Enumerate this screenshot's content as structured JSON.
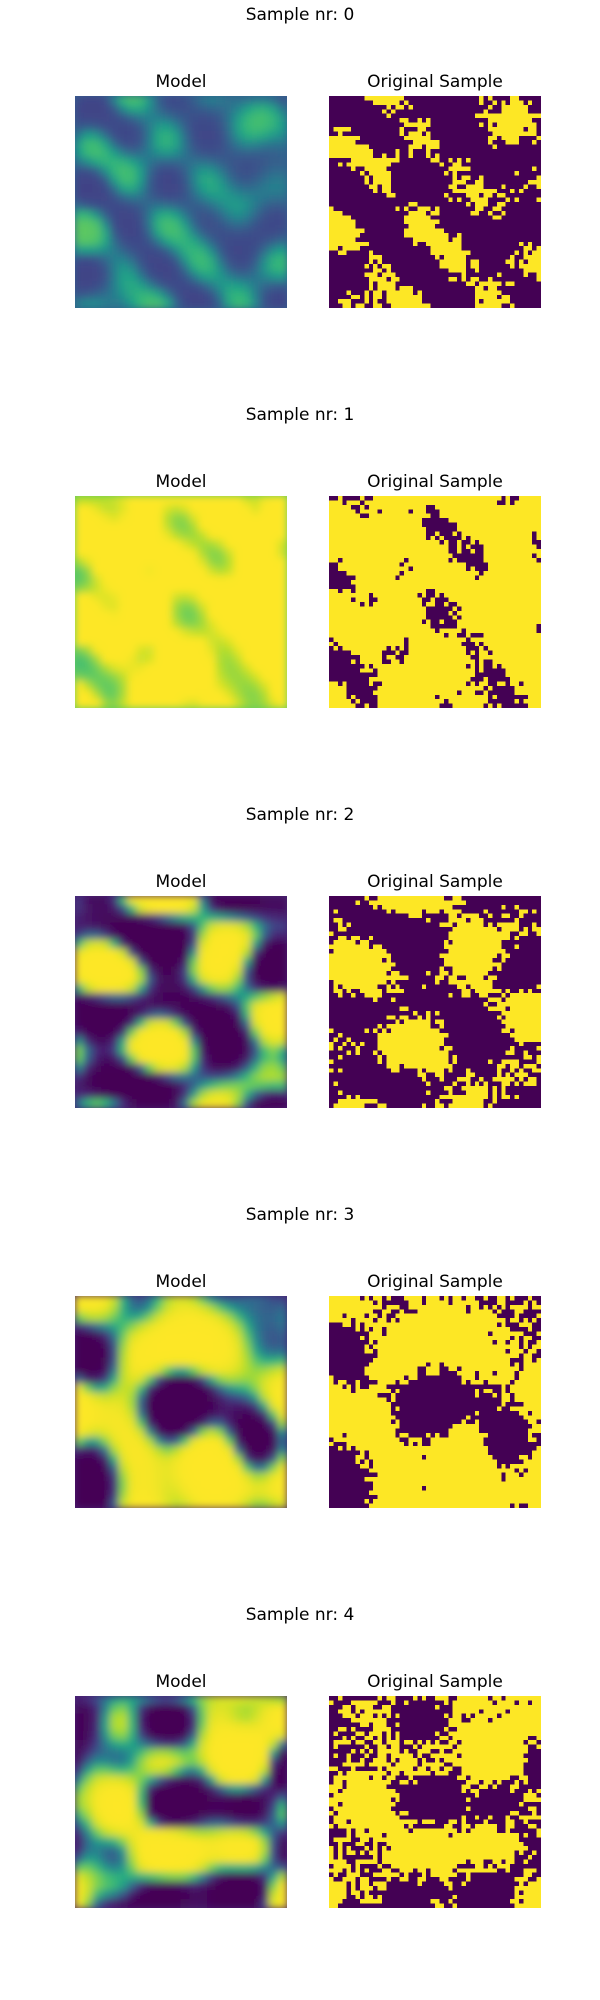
{
  "samples": [
    {
      "title": "Sample nr: 0",
      "panels": [
        "Model",
        "Original Sample"
      ]
    },
    {
      "title": "Sample nr: 1",
      "panels": [
        "Model",
        "Original Sample"
      ]
    },
    {
      "title": "Sample nr: 2",
      "panels": [
        "Model",
        "Original Sample"
      ]
    },
    {
      "title": "Sample nr: 3",
      "panels": [
        "Model",
        "Original Sample"
      ]
    },
    {
      "title": "Sample nr: 4",
      "panels": [
        "Model",
        "Original Sample"
      ]
    }
  ]
}
